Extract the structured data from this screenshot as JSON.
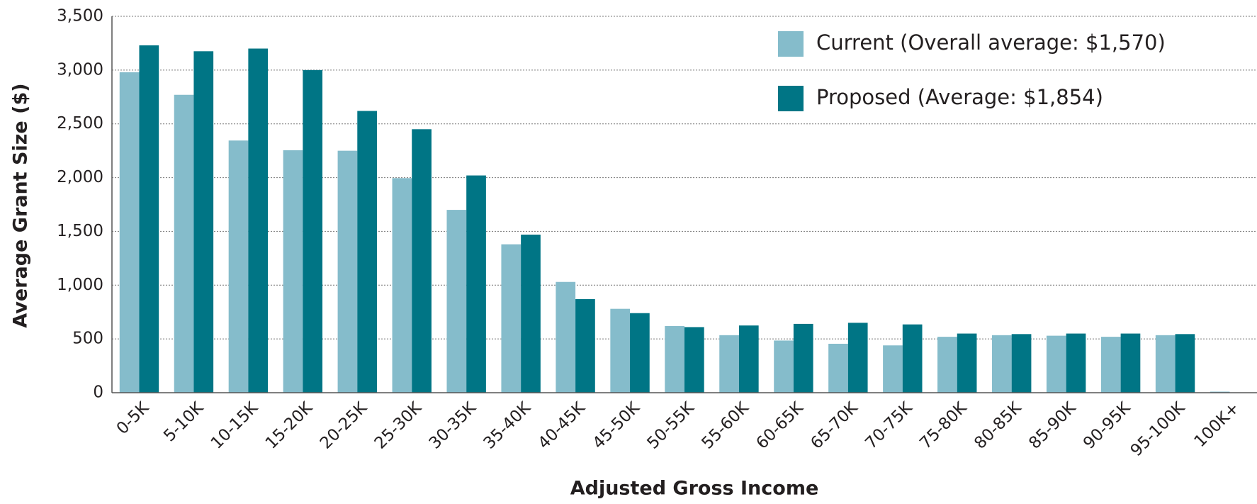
{
  "chart_data": {
    "type": "bar",
    "x_label": "Adjusted Gross Income",
    "y_label": "Average Grant Size ($)",
    "categories": [
      "0-5K",
      "5-10K",
      "10-15K",
      "15-20K",
      "20-25K",
      "25-30K",
      "30-35K",
      "35-40K",
      "40-45K",
      "45-50K",
      "50-55K",
      "55-60K",
      "60-65K",
      "65-70K",
      "70-75K",
      "75-80K",
      "80-85K",
      "85-90K",
      "90-95K",
      "95-100K",
      "100K+"
    ],
    "series": [
      {
        "name": "Current (Overall average: $1,570)",
        "color": "#85bccb",
        "values": [
          2980,
          2770,
          2345,
          2255,
          2250,
          1995,
          1700,
          1380,
          1030,
          780,
          620,
          535,
          485,
          455,
          440,
          520,
          535,
          530,
          520,
          535,
          10
        ]
      },
      {
        "name": "Proposed (Average: $1,854)",
        "color": "#007585",
        "values": [
          3230,
          3175,
          3200,
          3000,
          2620,
          2450,
          2020,
          1470,
          870,
          740,
          610,
          625,
          640,
          650,
          635,
          550,
          545,
          550,
          550,
          545,
          0
        ]
      }
    ],
    "ylim": [
      0,
      3500
    ],
    "yticks": [
      0,
      500,
      {
        "value": 1000,
        "label": "1,000"
      },
      {
        "value": 1500,
        "label": "1,500"
      },
      {
        "value": 2000,
        "label": "2,000"
      },
      {
        "value": 2500,
        "label": "2,500"
      },
      {
        "value": 3000,
        "label": "3,000"
      },
      {
        "value": 3500,
        "label": "3,500"
      }
    ],
    "grid": true,
    "legend": "top-right"
  }
}
